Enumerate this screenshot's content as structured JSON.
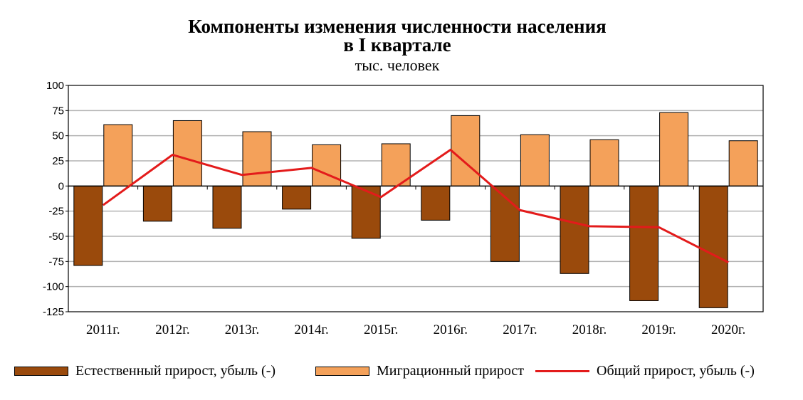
{
  "title_line1": "Компоненты изменения численности населения",
  "title_line2": "в I квартале",
  "subtitle": "тыс. человек",
  "colors": {
    "natural": "#9a4a0c",
    "migration": "#f4a15a",
    "total": "#e31b1b",
    "grid": "#b3b3b3"
  },
  "chart_data": {
    "type": "bar",
    "title": "Компоненты изменения численности населения в I квартале",
    "subtitle": "тыс. человек",
    "categories": [
      "2011г.",
      "2012г.",
      "2013г.",
      "2014г.",
      "2015г.",
      "2016г.",
      "2017г.",
      "2018г.",
      "2019г.",
      "2020г."
    ],
    "ylim": [
      -125,
      100
    ],
    "yticks": [
      100,
      75,
      50,
      25,
      0,
      -25,
      -50,
      -75,
      -100,
      -125
    ],
    "grid": true,
    "legend_position": "bottom",
    "series": [
      {
        "name": "Естественный прирост, убыль (-)",
        "type": "bar",
        "values": [
          -79,
          -35,
          -42,
          -23,
          -52,
          -34,
          -75,
          -87,
          -114,
          -121
        ]
      },
      {
        "name": "Миграционный прирост",
        "type": "bar",
        "values": [
          61,
          65,
          54,
          41,
          42,
          70,
          51,
          46,
          73,
          45
        ]
      },
      {
        "name": "Общий прирост, убыль (-)",
        "type": "line",
        "values": [
          -19,
          31,
          11,
          18,
          -11,
          36,
          -24,
          -40,
          -41,
          -76
        ]
      }
    ]
  },
  "legend": {
    "natural": "Естественный прирост, убыль (-)",
    "migration": "Миграционный прирост",
    "total": "Общий прирост, убыль (-)"
  }
}
